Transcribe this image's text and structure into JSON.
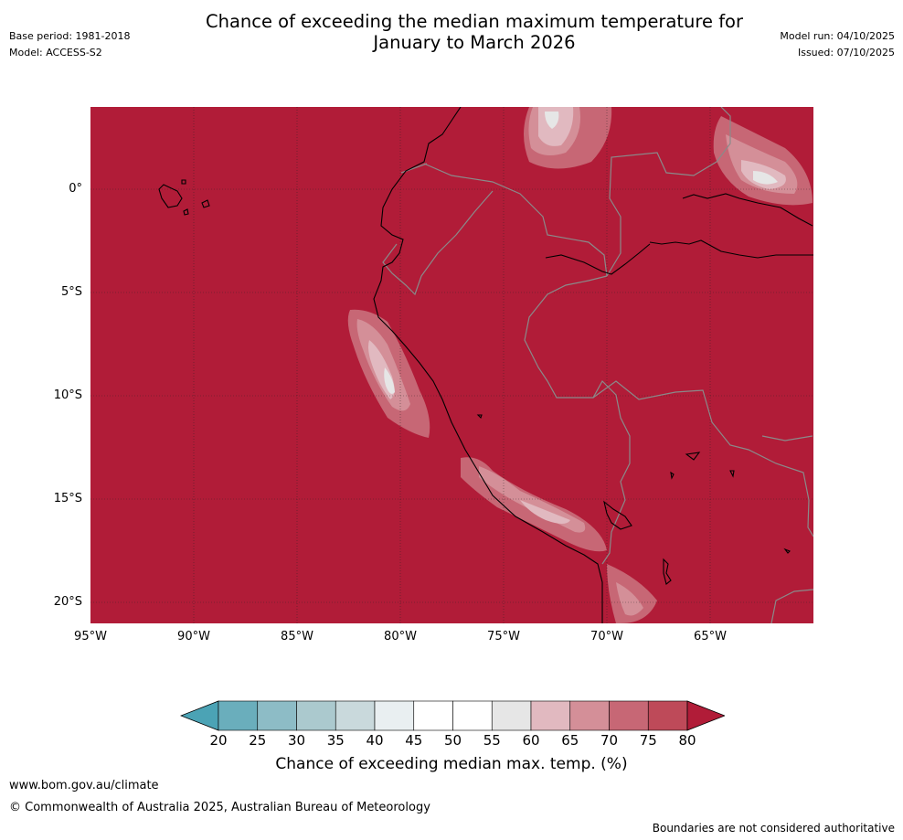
{
  "header": {
    "title_line1": "Chance of exceeding the median maximum temperature for",
    "title_line2": "January to March 2026",
    "base_period": "Base period: 1981-2018",
    "model": "Model: ACCESS-S2",
    "model_run": "Model run: 04/10/2025",
    "issued": "Issued: 07/10/2025"
  },
  "map": {
    "background_color": "#b11c38",
    "latitude_labels": [
      "0°",
      "5°S",
      "10°S",
      "15°S",
      "20°S"
    ],
    "longitude_labels": [
      "95°W",
      "90°W",
      "85°W",
      "80°W",
      "75°W",
      "70°W",
      "65°W"
    ]
  },
  "colorbar": {
    "ticks": [
      "20",
      "25",
      "30",
      "35",
      "40",
      "45",
      "50",
      "55",
      "60",
      "65",
      "70",
      "75",
      "80"
    ],
    "colors": [
      "#4ba3b5",
      "#6aaebc",
      "#8dbcc6",
      "#abc9ce",
      "#c9d9dc",
      "#e9eff1",
      "#ffffff",
      "#ffffff",
      "#e6e6e6",
      "#e1b9c0",
      "#d48f98",
      "#c76775",
      "#be4a59",
      "#b11c38"
    ],
    "label": "Chance of exceeding median max. temp. (%)"
  },
  "footer": {
    "website": "www.bom.gov.au/climate",
    "copyright": "© Commonwealth of Australia 2025, Australian Bureau of Meteorology",
    "disclaimer": "Boundaries are not considered authoritative"
  }
}
